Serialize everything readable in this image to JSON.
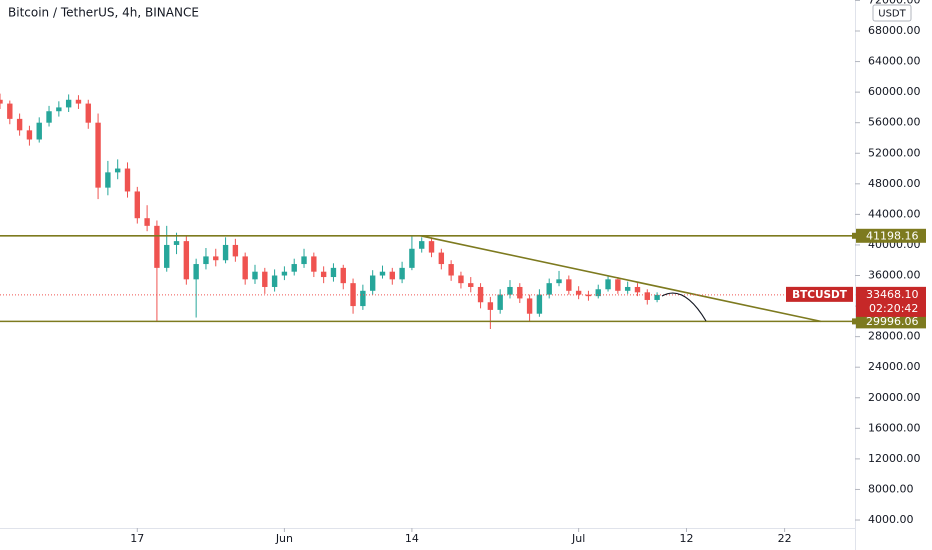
{
  "chart_data": {
    "type": "candlestick",
    "title": "Bitcoin / TetherUS, 4h, BINANCE",
    "currency": "USDT",
    "symbol": "BTCUSDT",
    "xlim": [
      0,
      87.2
    ],
    "ylim": [
      2000,
      72000
    ],
    "xticks": [
      {
        "value": 14,
        "label": "17"
      },
      {
        "value": 29,
        "label": "Jun"
      },
      {
        "value": 42,
        "label": "14"
      },
      {
        "value": 59,
        "label": "Jul"
      },
      {
        "value": 70,
        "label": "12"
      },
      {
        "value": 80,
        "label": "22"
      }
    ],
    "yticks": [
      {
        "value": 4000,
        "label": "4000.00"
      },
      {
        "value": 8000,
        "label": "8000.00"
      },
      {
        "value": 12000,
        "label": "12000.00"
      },
      {
        "value": 16000,
        "label": "16000.00"
      },
      {
        "value": 20000,
        "label": "20000.00"
      },
      {
        "value": 24000,
        "label": "24000.00"
      },
      {
        "value": 28000,
        "label": "28000.00"
      },
      {
        "value": 32000,
        "label": "32000.00"
      },
      {
        "value": 36000,
        "label": "36000.00"
      },
      {
        "value": 40000,
        "label": "40000.00"
      },
      {
        "value": 44000,
        "label": "44000.00"
      },
      {
        "value": 48000,
        "label": "48000.00"
      },
      {
        "value": 52000,
        "label": "52000.00"
      },
      {
        "value": 56000,
        "label": "56000.00"
      },
      {
        "value": 60000,
        "label": "60000.00"
      },
      {
        "value": 64000,
        "label": "64000.00"
      },
      {
        "value": 68000,
        "label": "68000.00"
      },
      {
        "value": 72000,
        "label": "72000.00"
      }
    ],
    "up_color": "#26a69a",
    "down_color": "#ef5350",
    "level_color": "#7d7a1f",
    "levels": [
      41198.16,
      29996.06
    ],
    "trendline": {
      "x": [
        42.9,
        83.7
      ],
      "y": [
        41198.16,
        29996.06
      ]
    },
    "last_price": {
      "value": 33468.1,
      "label": "33468.10"
    },
    "countdown": "02:20:42",
    "x": [
      0,
      1,
      2,
      3,
      4,
      5,
      6,
      7,
      8,
      9,
      10,
      11,
      12,
      13,
      14,
      15,
      16,
      17,
      18,
      19,
      20,
      21,
      22,
      23,
      24,
      25,
      26,
      27,
      28,
      29,
      30,
      31,
      32,
      33,
      34,
      35,
      36,
      37,
      38,
      39,
      40,
      41,
      42,
      43,
      44,
      45,
      46,
      47,
      48,
      49,
      50,
      51,
      52,
      53,
      54,
      55,
      56,
      57,
      58,
      59,
      60,
      61,
      62,
      63,
      64,
      65,
      66,
      67
    ],
    "open": [
      59000,
      58500,
      56500,
      55000,
      53800,
      56000,
      57500,
      58000,
      59000,
      58500,
      56000,
      47500,
      49500,
      50000,
      47000,
      43500,
      42500,
      37000,
      40000,
      40500,
      35500,
      37500,
      38500,
      38000,
      40000,
      38500,
      35500,
      36500,
      34500,
      36000,
      36500,
      37500,
      38500,
      36500,
      35800,
      37000,
      35000,
      32000,
      34000,
      36000,
      36500,
      35500,
      37000,
      39500,
      40500,
      39000,
      37500,
      36000,
      35000,
      34500,
      32500,
      31500,
      33500,
      34500,
      33000,
      31000,
      33500,
      35000,
      35500,
      34000,
      33500,
      33300,
      34200,
      35500,
      34000,
      34500,
      33800,
      32800
    ],
    "high": [
      59800,
      58900,
      57200,
      55600,
      56700,
      58200,
      58800,
      59700,
      59600,
      59000,
      57200,
      51000,
      51200,
      50800,
      47600,
      45200,
      43200,
      42500,
      41600,
      41200,
      38200,
      39600,
      39500,
      41000,
      40800,
      39000,
      37400,
      37000,
      36800,
      37200,
      38200,
      39500,
      39000,
      37200,
      37600,
      37400,
      35600,
      34800,
      36700,
      37300,
      37000,
      37800,
      41200,
      41000,
      41000,
      39500,
      38000,
      36500,
      35800,
      35000,
      33200,
      34200,
      35400,
      35000,
      33500,
      34200,
      35600,
      36600,
      36000,
      34600,
      34000,
      34800,
      36000,
      35800,
      35200,
      35000,
      34200,
      33800
    ],
    "low": [
      57800,
      55800,
      54300,
      53000,
      53400,
      55500,
      56800,
      57400,
      57800,
      55200,
      46000,
      46500,
      48600,
      46200,
      42800,
      41800,
      30000,
      36500,
      38800,
      34800,
      30500,
      36800,
      37200,
      37600,
      37800,
      34800,
      34900,
      33600,
      33900,
      35400,
      36000,
      37000,
      35800,
      35000,
      35200,
      34200,
      31000,
      31500,
      33500,
      35600,
      34800,
      35000,
      36700,
      39000,
      38400,
      36800,
      35300,
      34300,
      33800,
      31700,
      29000,
      31000,
      33000,
      32400,
      30000,
      30600,
      33000,
      34600,
      33500,
      32900,
      32700,
      33000,
      33900,
      33600,
      33600,
      33300,
      32200,
      32500
    ],
    "close": [
      58500,
      56500,
      55000,
      53800,
      56000,
      57500,
      58000,
      59000,
      58500,
      56000,
      47500,
      49500,
      50000,
      47000,
      43500,
      42500,
      37000,
      40000,
      40500,
      35500,
      37500,
      38500,
      38000,
      40000,
      38500,
      35500,
      36500,
      34500,
      36000,
      36500,
      37500,
      38500,
      36500,
      35800,
      37000,
      35000,
      32000,
      34000,
      36000,
      36500,
      35500,
      37000,
      39500,
      40500,
      39000,
      37500,
      36000,
      35000,
      34500,
      32500,
      31500,
      33500,
      34500,
      33000,
      31000,
      33500,
      35000,
      35500,
      34000,
      33500,
      33300,
      34200,
      35500,
      34000,
      34500,
      33800,
      32800,
      33468.1
    ]
  }
}
